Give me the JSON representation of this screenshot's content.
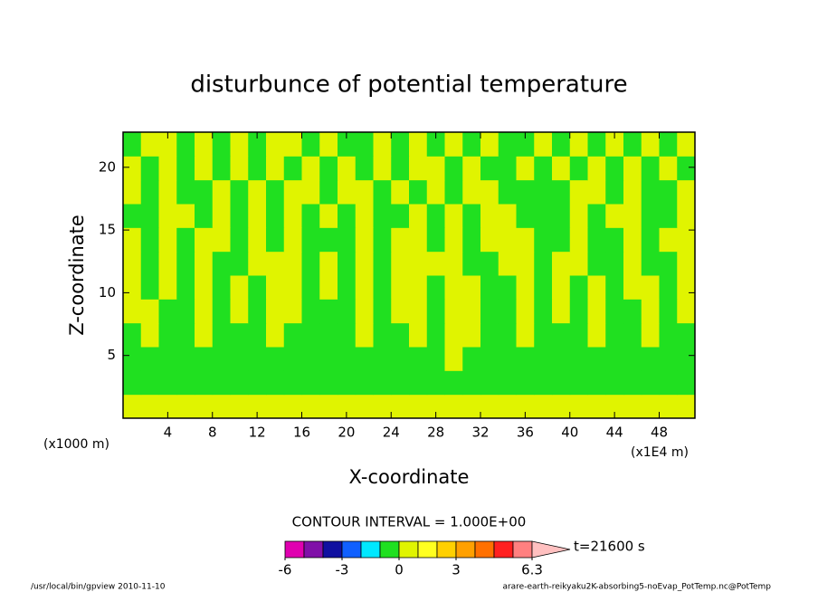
{
  "chart_data": {
    "type": "contour",
    "title": "disturbunce of potential temperature",
    "xlabel": "X-coordinate",
    "ylabel": "Z-coordinate",
    "x_unit": "(x1000 m)",
    "x_unit2": "(x1E4 m)",
    "xlim": [
      0,
      51.2
    ],
    "ylim": [
      0,
      22.8
    ],
    "xticks": [
      4,
      8,
      12,
      16,
      20,
      24,
      28,
      32,
      36,
      40,
      44,
      48
    ],
    "yticks": [
      5,
      10,
      15,
      20
    ],
    "contour_interval": "CONTOUR INTERVAL = 1.000E+00",
    "time_label": "t=21600 s",
    "colorbar": {
      "levels": [
        -6,
        -5,
        -4,
        -3,
        -2,
        -1,
        0,
        1,
        2,
        3,
        4,
        5,
        6,
        6.3
      ],
      "colors": [
        "#e000b0",
        "#8010a8",
        "#1010a0",
        "#1060ff",
        "#00e8ff",
        "#20e020",
        "#e0f400",
        "#ffff20",
        "#ffd000",
        "#ffa000",
        "#ff7000",
        "#ff2020",
        "#ff8080"
      ],
      "over_color": "#ffc0c0",
      "ticks": [
        -6,
        -3,
        0,
        3,
        6.3
      ]
    },
    "field": {
      "values": [
        [
          0.5,
          0.5,
          0.5,
          0.5,
          0.5,
          0.5,
          0.5,
          0.5,
          0.5,
          0.5,
          0.5,
          0.5,
          0.5,
          0.5,
          0.5,
          0.5,
          0.5,
          0.5,
          0.5,
          0.5,
          0.5,
          0.5,
          0.5,
          0.5,
          0.5,
          0.5,
          0.5,
          0.5,
          0.5,
          0.5,
          0.5,
          0.5
        ],
        [
          -0.5,
          -0.5,
          -0.5,
          -0.5,
          -0.5,
          -0.5,
          -0.5,
          -0.5,
          -0.5,
          -0.5,
          -0.5,
          -0.5,
          -0.5,
          -0.5,
          -0.5,
          -0.5,
          -0.5,
          -0.5,
          -0.5,
          -0.5,
          -0.5,
          -0.5,
          -0.5,
          -0.5,
          -0.5,
          -0.5,
          -0.5,
          -0.5,
          -0.5,
          -0.5,
          -0.5,
          -0.5
        ],
        [
          -0.5,
          -0.5,
          -0.5,
          -0.5,
          -0.5,
          -0.5,
          -0.5,
          -0.5,
          -0.5,
          -0.5,
          -0.5,
          -0.5,
          -0.5,
          -0.5,
          -0.5,
          -0.5,
          -0.5,
          -0.5,
          0.5,
          -0.5,
          -0.5,
          -0.5,
          -0.5,
          -0.5,
          -0.5,
          -0.5,
          -0.5,
          -0.5,
          -0.5,
          -0.5,
          -0.5,
          -0.5
        ],
        [
          -0.5,
          0.5,
          -0.5,
          -0.5,
          0.5,
          -0.5,
          -0.5,
          -0.5,
          0.5,
          -0.5,
          -0.5,
          -0.5,
          -0.5,
          0.5,
          -0.5,
          -0.5,
          0.5,
          -0.5,
          0.5,
          0.5,
          -0.5,
          -0.5,
          0.5,
          -0.5,
          -0.5,
          -0.5,
          0.5,
          -0.5,
          -0.5,
          0.5,
          -0.5,
          -0.5
        ],
        [
          0.5,
          0.5,
          -0.5,
          -0.5,
          0.5,
          -0.5,
          0.5,
          -0.5,
          0.5,
          0.5,
          -0.5,
          -0.5,
          -0.5,
          0.5,
          -0.5,
          0.5,
          0.5,
          -0.5,
          0.5,
          0.5,
          -0.5,
          -0.5,
          0.5,
          -0.5,
          0.5,
          -0.5,
          0.5,
          -0.5,
          -0.5,
          0.5,
          -0.5,
          0.5
        ],
        [
          0.5,
          -0.5,
          0.5,
          -0.5,
          0.5,
          -0.5,
          0.5,
          -0.5,
          0.5,
          0.5,
          -0.5,
          0.5,
          -0.5,
          0.5,
          -0.5,
          0.5,
          0.5,
          -0.5,
          0.5,
          0.5,
          -0.5,
          -0.5,
          0.5,
          -0.5,
          0.5,
          -0.5,
          0.5,
          -0.5,
          0.5,
          0.5,
          -0.5,
          0.5
        ],
        [
          0.5,
          -0.5,
          0.5,
          -0.5,
          0.5,
          -0.5,
          -0.5,
          0.5,
          0.5,
          0.5,
          -0.5,
          0.5,
          -0.5,
          0.5,
          -0.5,
          0.5,
          0.5,
          0.5,
          0.5,
          -0.5,
          -0.5,
          0.5,
          0.5,
          -0.5,
          0.5,
          0.5,
          -0.5,
          -0.5,
          0.5,
          -0.5,
          -0.5,
          0.5
        ],
        [
          0.5,
          -0.5,
          0.5,
          -0.5,
          0.5,
          0.5,
          -0.5,
          0.5,
          -0.5,
          0.5,
          -0.5,
          -0.5,
          -0.5,
          0.5,
          -0.5,
          0.5,
          0.5,
          -0.5,
          0.5,
          -0.5,
          0.5,
          0.5,
          0.5,
          -0.5,
          -0.5,
          0.5,
          -0.5,
          -0.5,
          0.5,
          -0.5,
          0.5,
          0.5
        ],
        [
          -0.5,
          -0.5,
          0.5,
          0.5,
          -0.5,
          0.5,
          -0.5,
          0.5,
          -0.5,
          0.5,
          -0.5,
          0.5,
          -0.5,
          0.5,
          -0.5,
          -0.5,
          0.5,
          -0.5,
          0.5,
          -0.5,
          0.5,
          0.5,
          -0.5,
          -0.5,
          -0.5,
          0.5,
          -0.5,
          0.5,
          0.5,
          -0.5,
          -0.5,
          0.5
        ],
        [
          0.5,
          -0.5,
          0.5,
          -0.5,
          -0.5,
          0.5,
          -0.5,
          0.5,
          -0.5,
          0.5,
          0.5,
          -0.5,
          0.5,
          0.5,
          -0.5,
          0.5,
          -0.5,
          0.5,
          -0.5,
          0.5,
          0.5,
          -0.5,
          -0.5,
          -0.5,
          -0.5,
          0.5,
          0.5,
          -0.5,
          0.5,
          -0.5,
          -0.5,
          0.5
        ],
        [
          0.5,
          -0.5,
          0.5,
          -0.5,
          0.5,
          -0.5,
          0.5,
          -0.5,
          0.5,
          -0.5,
          0.5,
          -0.5,
          0.5,
          -0.5,
          0.5,
          -0.5,
          0.5,
          0.5,
          -0.5,
          0.5,
          -0.5,
          -0.5,
          0.5,
          -0.5,
          0.5,
          -0.5,
          0.5,
          -0.5,
          0.5,
          -0.5,
          0.5,
          -0.5
        ],
        [
          -0.5,
          0.5,
          0.5,
          -0.5,
          0.5,
          -0.5,
          0.5,
          -0.5,
          0.5,
          0.5,
          -0.5,
          0.5,
          -0.5,
          -0.5,
          0.5,
          -0.5,
          0.5,
          -0.5,
          0.5,
          -0.5,
          0.5,
          -0.5,
          -0.5,
          0.5,
          -0.5,
          0.5,
          -0.5,
          0.5,
          -0.5,
          0.5,
          -0.5,
          0.5
        ]
      ]
    }
  },
  "footer": {
    "left": "/usr/local/bin/gpview  2010-11-10",
    "right": "arare-earth-reikyaku2K-absorbing5-noEvap_PotTemp.nc@PotTemp"
  }
}
